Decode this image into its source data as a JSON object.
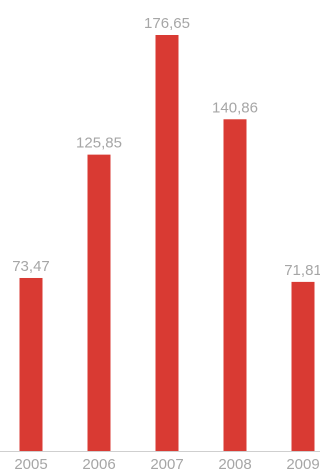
{
  "chart_data": {
    "type": "bar",
    "categories": [
      "2005",
      "2006",
      "2007",
      "2008",
      "2009"
    ],
    "values": [
      73.47,
      125.85,
      176.65,
      140.86,
      71.81
    ],
    "value_labels": [
      "73,47",
      "125,85",
      "176,65",
      "140,86",
      "71,81"
    ],
    "title": "",
    "xlabel": "",
    "ylabel": "",
    "ylim": [
      0,
      176.65
    ],
    "grid": false,
    "legend": "none",
    "colors": {
      "bar": "#d93a33",
      "text": "#a6a6a6",
      "axis": "#cfcfcf"
    }
  }
}
